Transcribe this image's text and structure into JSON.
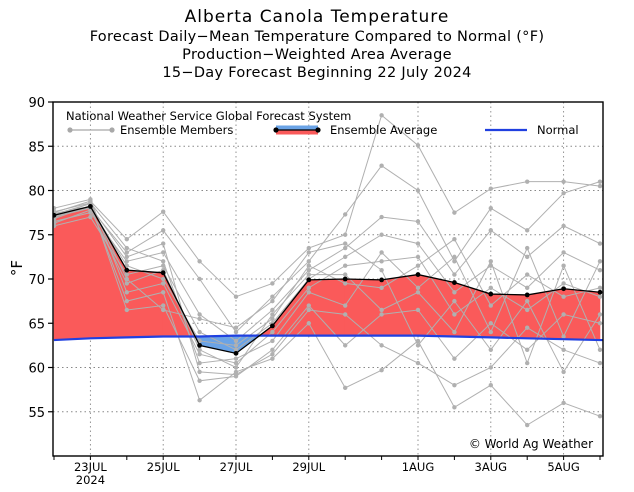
{
  "titles": {
    "main": "Alberta Canola Temperature",
    "line2": "Forecast Daily−Mean Temperature Compared to Normal (°F)",
    "line3": "Production−Weighted Area Average",
    "line4": "15−Day Forecast Beginning 22 July 2024"
  },
  "chart_data": {
    "type": "line",
    "ylabel": "°F",
    "ylim": [
      50,
      90
    ],
    "yticks": [
      55,
      60,
      65,
      70,
      75,
      80,
      85,
      90
    ],
    "x": [
      "22JUL",
      "23JUL",
      "24JUL",
      "25JUL",
      "26JUL",
      "27JUL",
      "28JUL",
      "29JUL",
      "30JUL",
      "31JUL",
      "1AUG",
      "2AUG",
      "3AUG",
      "4AUG",
      "5AUG",
      "6AUG"
    ],
    "xtick_labels": [
      {
        "x": "23JUL",
        "label": "23JUL",
        "sub": "2024"
      },
      {
        "x": "25JUL",
        "label": "25JUL"
      },
      {
        "x": "27JUL",
        "label": "27JUL"
      },
      {
        "x": "29JUL",
        "label": "29JUL"
      },
      {
        "x": "1AUG",
        "label": "1AUG"
      },
      {
        "x": "3AUG",
        "label": "3AUG"
      },
      {
        "x": "5AUG",
        "label": "5AUG"
      }
    ],
    "grid": true,
    "legend": {
      "header": "National Weather Service Global Forecast System",
      "ensemble_members": "Ensemble Members",
      "ensemble_average": "Ensemble Average",
      "normal": "Normal",
      "placement": "top"
    },
    "annotation": "© World Ag Weather",
    "colors": {
      "above_normal": "#fa5a5a",
      "below_normal": "#6aa3e6",
      "normal": "#2040e0",
      "members": "#b0b0b0",
      "average": "#000000"
    },
    "series": [
      {
        "name": "Ensemble Average",
        "values": [
          77.2,
          78.2,
          71.0,
          70.7,
          62.5,
          61.6,
          64.7,
          69.9,
          70.0,
          69.9,
          70.5,
          69.6,
          68.3,
          68.2,
          68.9,
          68.5
        ]
      },
      {
        "name": "Normal",
        "values": [
          63.1,
          63.3,
          63.4,
          63.5,
          63.5,
          63.6,
          63.6,
          63.6,
          63.6,
          63.6,
          63.6,
          63.5,
          63.4,
          63.3,
          63.2,
          63.1
        ]
      }
    ],
    "ensemble_members": [
      [
        77.5,
        78.8,
        74.5,
        77.6,
        72.0,
        68.0,
        69.5,
        73.5,
        75.0,
        88.5,
        85.1,
        77.5,
        80.2,
        81.0,
        81.0,
        80.5
      ],
      [
        77.0,
        78.0,
        73.0,
        75.5,
        70.0,
        64.0,
        68.0,
        72.0,
        77.3,
        82.8,
        80.0,
        72.0,
        78.0,
        75.5,
        79.7,
        81.0
      ],
      [
        76.5,
        77.5,
        72.0,
        73.0,
        66.0,
        63.0,
        66.5,
        71.0,
        73.5,
        77.0,
        76.5,
        70.5,
        75.5,
        72.5,
        76.0,
        74.0
      ],
      [
        76.0,
        77.0,
        70.5,
        71.5,
        64.0,
        62.0,
        65.0,
        70.0,
        72.5,
        75.0,
        74.0,
        68.5,
        71.5,
        69.0,
        73.0,
        71.0
      ],
      [
        78.0,
        79.0,
        68.5,
        69.5,
        61.5,
        60.5,
        64.0,
        69.0,
        71.5,
        72.0,
        72.5,
        66.0,
        69.0,
        66.5,
        69.5,
        68.0
      ],
      [
        77.3,
        78.5,
        66.5,
        67.0,
        58.5,
        59.0,
        62.0,
        67.0,
        62.5,
        66.0,
        66.5,
        61.0,
        65.0,
        62.0,
        66.0,
        65.0
      ],
      [
        76.8,
        78.3,
        67.5,
        68.5,
        56.3,
        59.5,
        61.0,
        65.0,
        57.7,
        59.7,
        63.0,
        55.5,
        58.0,
        53.5,
        56.0,
        54.5
      ],
      [
        77.1,
        78.1,
        71.5,
        70.0,
        63.0,
        62.5,
        65.5,
        71.5,
        69.5,
        69.0,
        71.5,
        74.5,
        67.0,
        70.5,
        68.0,
        69.0
      ],
      [
        77.6,
        78.6,
        73.5,
        72.0,
        60.5,
        61.0,
        63.0,
        68.5,
        67.0,
        73.0,
        69.0,
        72.5,
        64.0,
        73.5,
        63.5,
        72.0
      ],
      [
        76.3,
        77.8,
        69.5,
        71.0,
        62.0,
        60.0,
        66.0,
        70.5,
        70.5,
        66.5,
        68.5,
        64.0,
        72.0,
        60.5,
        71.5,
        62.0
      ],
      [
        76.9,
        78.6,
        70.0,
        66.5,
        65.5,
        64.5,
        67.5,
        73.0,
        74.0,
        71.0,
        62.5,
        67.5,
        62.0,
        67.5,
        59.5,
        66.0
      ],
      [
        77.4,
        78.2,
        72.5,
        74.0,
        59.5,
        59.2,
        61.5,
        66.5,
        66.0,
        62.5,
        60.5,
        58.0,
        60.0,
        64.5,
        62.0,
        60.5
      ]
    ]
  }
}
